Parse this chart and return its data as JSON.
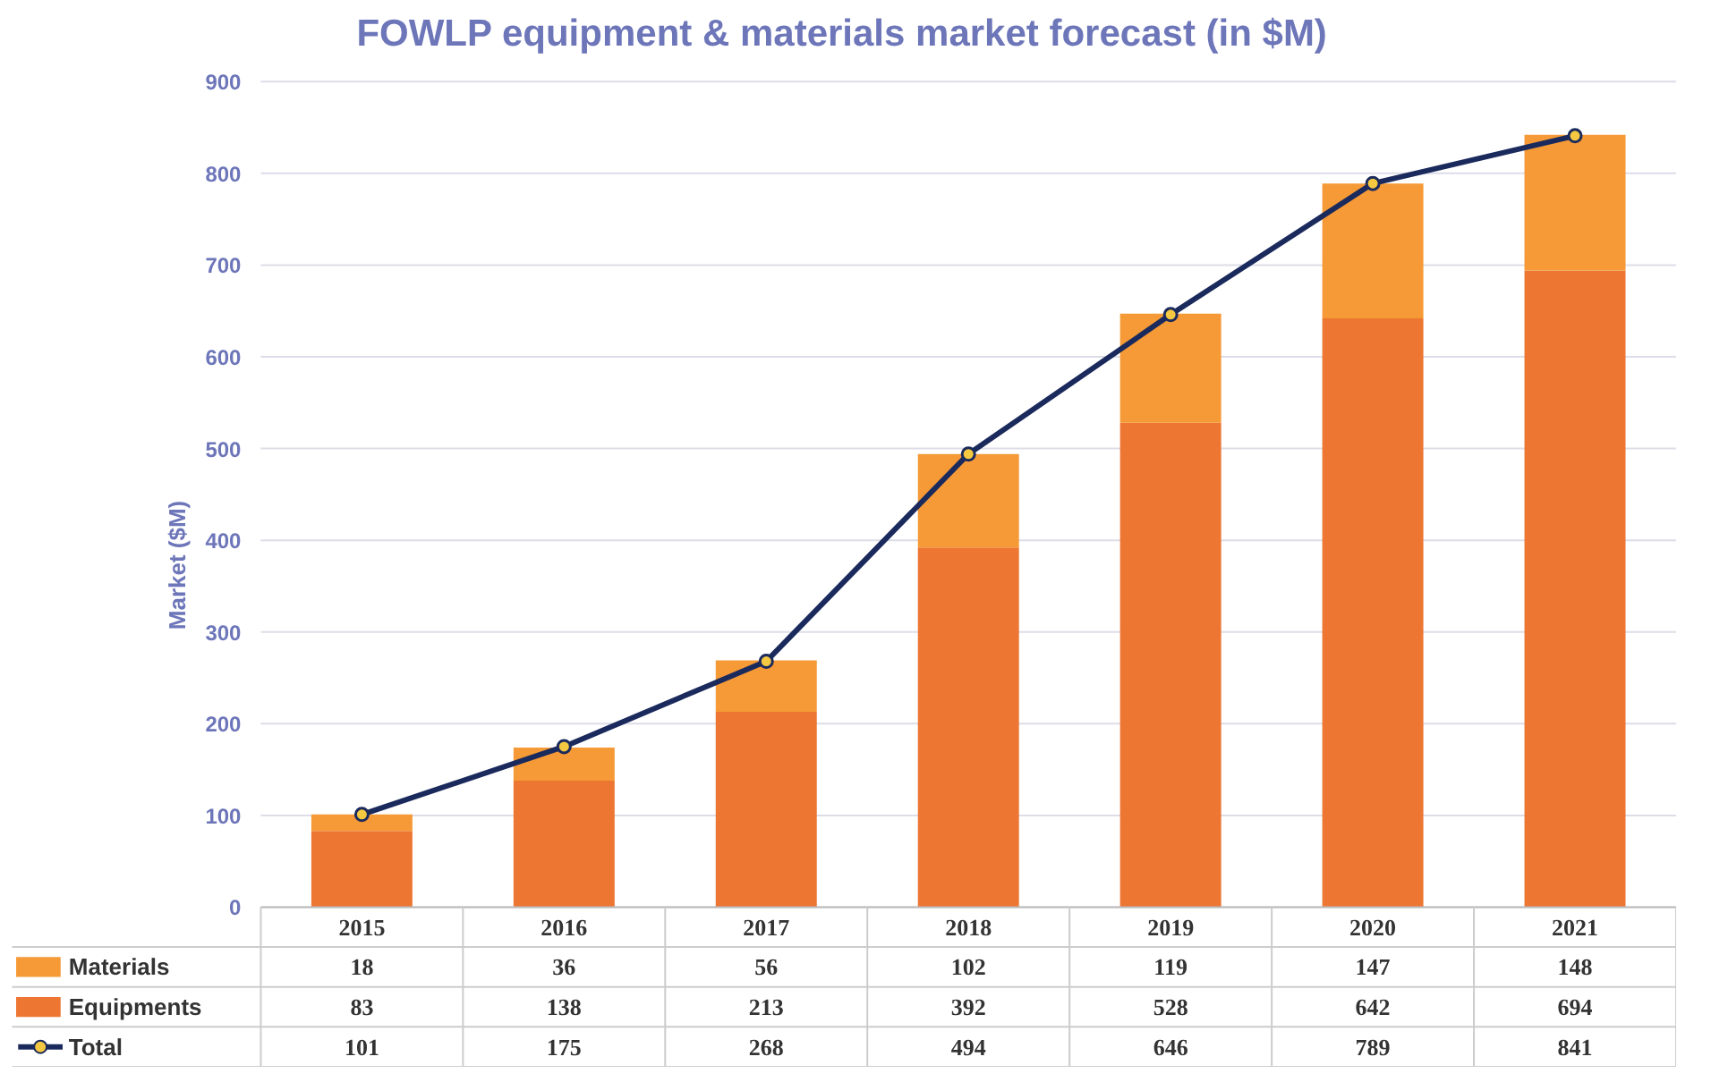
{
  "chart_data": {
    "type": "bar",
    "title": "FOWLP equipment & materials market forecast (in $M)",
    "ylabel": "Market ($M)",
    "categories": [
      "2015",
      "2016",
      "2017",
      "2018",
      "2019",
      "2020",
      "2021"
    ],
    "stacked": true,
    "ylim": [
      0,
      900
    ],
    "yticks": [
      0,
      100,
      200,
      300,
      400,
      500,
      600,
      700,
      800,
      900
    ],
    "grid": "y",
    "legend": "bottom",
    "data_labels": true,
    "series": [
      {
        "name": "Equipments",
        "color": "#ed7633",
        "values": [
          83,
          138,
          213,
          392,
          528,
          642,
          694
        ]
      },
      {
        "name": "Materials",
        "color": "#f59a36",
        "values": [
          18,
          36,
          56,
          102,
          119,
          147,
          148
        ]
      },
      {
        "name": "Total",
        "type": "line",
        "color": "#1b2a5c",
        "marker": "circle",
        "values": [
          101,
          175,
          268,
          494,
          646,
          789,
          841
        ]
      }
    ]
  }
}
